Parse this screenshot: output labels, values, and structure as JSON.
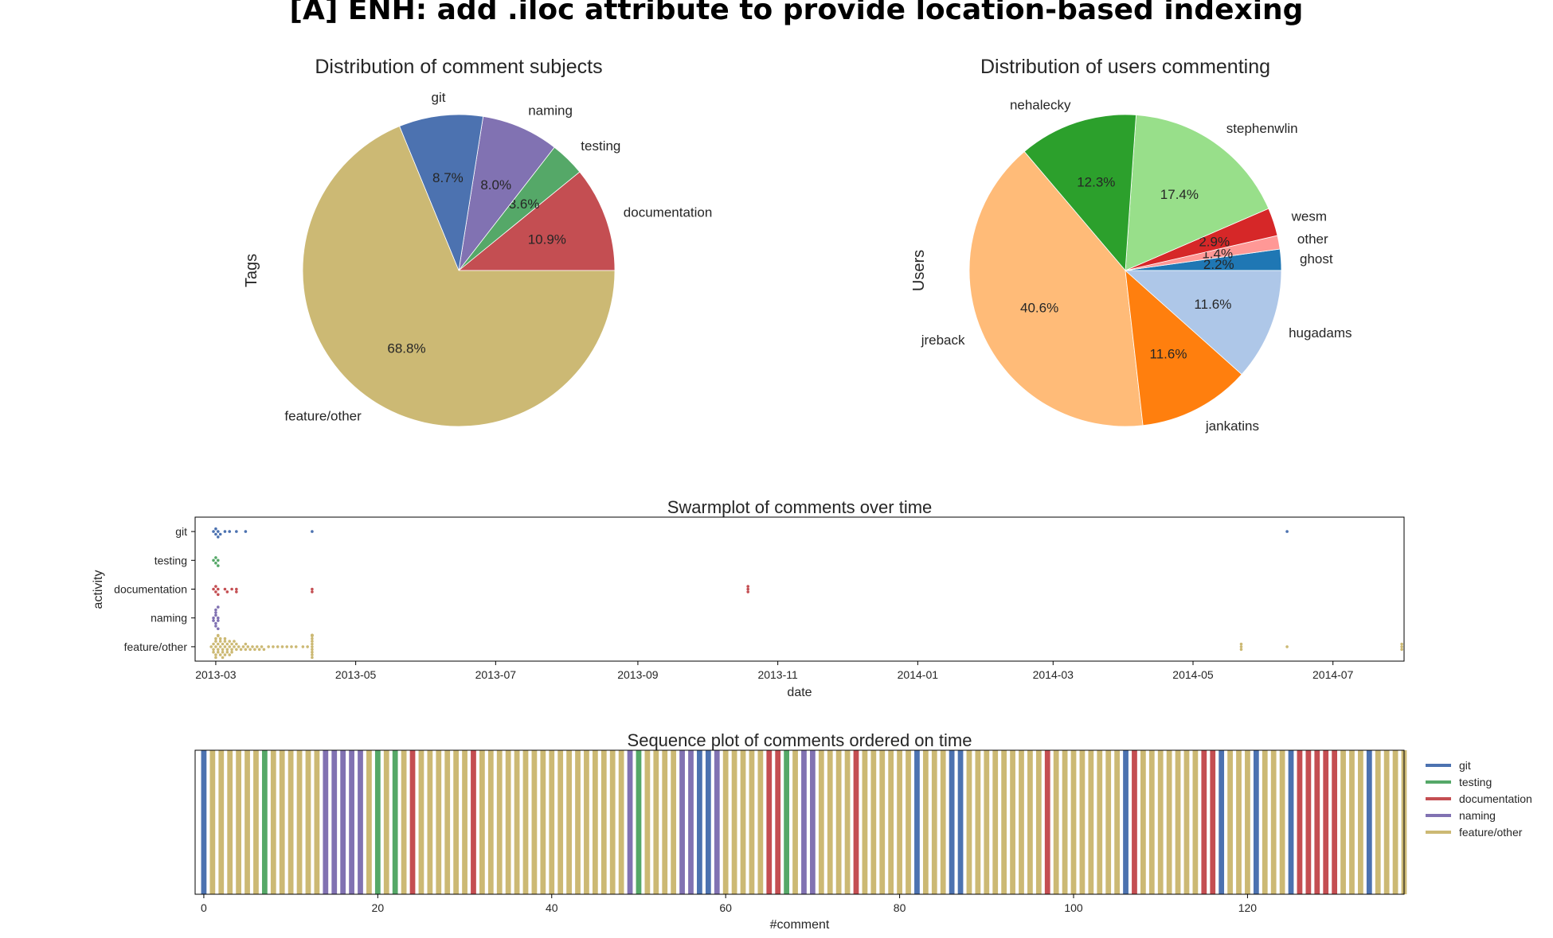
{
  "suptitle": "[A] ENH: add .iloc attribute to provide location-based indexing",
  "chart_data": [
    {
      "type": "pie",
      "title": "Distribution of comment subjects",
      "ylabel": "Tags",
      "slices": [
        {
          "label": "documentation",
          "value": 10.9,
          "pct": "10.9%",
          "color": "#c44e52"
        },
        {
          "label": "testing",
          "value": 3.6,
          "pct": "3.6%",
          "color": "#55a868"
        },
        {
          "label": "naming",
          "value": 8.0,
          "pct": "8.0%",
          "color": "#8172b2"
        },
        {
          "label": "git",
          "value": 8.7,
          "pct": "8.7%",
          "color": "#4c72b0"
        },
        {
          "label": "feature/other",
          "value": 68.8,
          "pct": "68.8%",
          "color": "#ccb974"
        }
      ]
    },
    {
      "type": "pie",
      "title": "Distribution of users commenting",
      "ylabel": "Users",
      "slices": [
        {
          "label": "ghost",
          "value": 2.2,
          "pct": "2.2%",
          "color": "#1f77b4"
        },
        {
          "label": "other",
          "value": 1.4,
          "pct": "1.4%",
          "color": "#ff9896"
        },
        {
          "label": "wesm",
          "value": 2.9,
          "pct": "2.9%",
          "color": "#d62728"
        },
        {
          "label": "stephenwlin",
          "value": 17.4,
          "pct": "17.4%",
          "color": "#98df8a"
        },
        {
          "label": "nehalecky",
          "value": 12.3,
          "pct": "12.3%",
          "color": "#2ca02c"
        },
        {
          "label": "jreback",
          "value": 40.6,
          "pct": "40.6%",
          "color": "#ffbb78"
        },
        {
          "label": "jankatins",
          "value": 11.6,
          "pct": "11.6%",
          "color": "#ff7f0e"
        },
        {
          "label": "hugadams",
          "value": 11.6,
          "pct": "11.6%",
          "color": "#aec7e8"
        }
      ]
    },
    {
      "type": "scatter",
      "title": "Swarmplot of comments over time",
      "xlabel": "date",
      "ylabel": "activity",
      "categories": [
        "git",
        "testing",
        "documentation",
        "naming",
        "feature/other"
      ],
      "xlim": [
        "2013-02-20",
        "2014-08-01"
      ],
      "xticks": [
        "2013-03",
        "2013-05",
        "2013-07",
        "2013-09",
        "2013-11",
        "2014-01",
        "2014-03",
        "2014-05",
        "2014-07"
      ],
      "series": [
        {
          "category": "git",
          "color": "#4c72b0",
          "dates": [
            "2013-02-28",
            "2013-03-01",
            "2013-03-01",
            "2013-03-02",
            "2013-03-02",
            "2013-03-03",
            "2013-03-05",
            "2013-03-07",
            "2013-03-10",
            "2013-03-14",
            "2013-04-12",
            "2014-06-11"
          ]
        },
        {
          "category": "testing",
          "color": "#55a868",
          "dates": [
            "2013-02-28",
            "2013-03-01",
            "2013-03-01",
            "2013-03-02",
            "2013-03-02"
          ]
        },
        {
          "category": "documentation",
          "color": "#c44e52",
          "dates": [
            "2013-02-28",
            "2013-03-01",
            "2013-03-01",
            "2013-03-02",
            "2013-03-02",
            "2013-03-05",
            "2013-03-06",
            "2013-03-08",
            "2013-03-10",
            "2013-03-10",
            "2013-04-12",
            "2013-04-12",
            "2013-10-19",
            "2013-10-19",
            "2013-10-19"
          ]
        },
        {
          "category": "naming",
          "color": "#8172b2",
          "dates": [
            "2013-02-28",
            "2013-02-28",
            "2013-03-01",
            "2013-03-01",
            "2013-03-01",
            "2013-03-01",
            "2013-03-01",
            "2013-03-02",
            "2013-03-02",
            "2013-03-02",
            "2013-03-02"
          ]
        },
        {
          "category": "feature/other",
          "color": "#ccb974",
          "dates": [
            "2013-02-27",
            "2013-02-28",
            "2013-02-28",
            "2013-02-28",
            "2013-03-01",
            "2013-03-01",
            "2013-03-01",
            "2013-03-01",
            "2013-03-01",
            "2013-03-02",
            "2013-03-02",
            "2013-03-02",
            "2013-03-02",
            "2013-03-02",
            "2013-03-03",
            "2013-03-03",
            "2013-03-03",
            "2013-03-03",
            "2013-03-04",
            "2013-03-04",
            "2013-03-04",
            "2013-03-04",
            "2013-03-05",
            "2013-03-05",
            "2013-03-05",
            "2013-03-05",
            "2013-03-06",
            "2013-03-06",
            "2013-03-06",
            "2013-03-07",
            "2013-03-07",
            "2013-03-07",
            "2013-03-08",
            "2013-03-08",
            "2013-03-08",
            "2013-03-09",
            "2013-03-09",
            "2013-03-10",
            "2013-03-10",
            "2013-03-11",
            "2013-03-12",
            "2013-03-13",
            "2013-03-14",
            "2013-03-14",
            "2013-03-15",
            "2013-03-16",
            "2013-03-17",
            "2013-03-18",
            "2013-03-19",
            "2013-03-20",
            "2013-03-21",
            "2013-03-22",
            "2013-03-24",
            "2013-03-26",
            "2013-03-28",
            "2013-03-30",
            "2013-04-01",
            "2013-04-03",
            "2013-04-05",
            "2013-04-08",
            "2013-04-10",
            "2013-04-12",
            "2013-04-12",
            "2013-04-12",
            "2013-04-12",
            "2013-04-12",
            "2013-04-12",
            "2013-04-12",
            "2013-04-12",
            "2013-04-12",
            "2013-04-12",
            "2013-04-12",
            "2013-04-12",
            "2013-04-12",
            "2013-04-12",
            "2013-04-12",
            "2013-04-12",
            "2013-04-12",
            "2013-04-12",
            "2013-04-12",
            "2013-04-12",
            "2014-05-22",
            "2014-05-22",
            "2014-05-22",
            "2014-06-11",
            "2014-07-31",
            "2014-07-31",
            "2014-07-31"
          ]
        }
      ]
    },
    {
      "type": "bar",
      "title": "Sequence plot of comments ordered on time",
      "xlabel": "#comment",
      "xlim": [
        -1,
        138
      ],
      "xticks": [
        0,
        20,
        40,
        60,
        80,
        100,
        120
      ],
      "legend": {
        "position": "right",
        "entries": [
          {
            "label": "git",
            "color": "#4c72b0"
          },
          {
            "label": "testing",
            "color": "#55a868"
          },
          {
            "label": "documentation",
            "color": "#c44e52"
          },
          {
            "label": "naming",
            "color": "#8172b2"
          },
          {
            "label": "feature/other",
            "color": "#ccb974"
          }
        ]
      },
      "sequence": [
        "git",
        "feature/other",
        "feature/other",
        "feature/other",
        "feature/other",
        "feature/other",
        "feature/other",
        "testing",
        "feature/other",
        "feature/other",
        "feature/other",
        "feature/other",
        "feature/other",
        "feature/other",
        "naming",
        "naming",
        "naming",
        "naming",
        "naming",
        "feature/other",
        "testing",
        "feature/other",
        "testing",
        "feature/other",
        "documentation",
        "feature/other",
        "feature/other",
        "feature/other",
        "feature/other",
        "feature/other",
        "feature/other",
        "documentation",
        "feature/other",
        "feature/other",
        "feature/other",
        "feature/other",
        "feature/other",
        "feature/other",
        "feature/other",
        "feature/other",
        "feature/other",
        "feature/other",
        "feature/other",
        "feature/other",
        "feature/other",
        "feature/other",
        "feature/other",
        "feature/other",
        "feature/other",
        "naming",
        "testing",
        "feature/other",
        "feature/other",
        "feature/other",
        "feature/other",
        "naming",
        "naming",
        "git",
        "git",
        "naming",
        "feature/other",
        "feature/other",
        "feature/other",
        "feature/other",
        "feature/other",
        "documentation",
        "documentation",
        "testing",
        "feature/other",
        "naming",
        "naming",
        "feature/other",
        "feature/other",
        "feature/other",
        "feature/other",
        "documentation",
        "feature/other",
        "feature/other",
        "feature/other",
        "feature/other",
        "feature/other",
        "feature/other",
        "git",
        "feature/other",
        "feature/other",
        "feature/other",
        "git",
        "git",
        "feature/other",
        "feature/other",
        "feature/other",
        "feature/other",
        "feature/other",
        "feature/other",
        "feature/other",
        "feature/other",
        "feature/other",
        "documentation",
        "feature/other",
        "feature/other",
        "feature/other",
        "feature/other",
        "feature/other",
        "feature/other",
        "feature/other",
        "feature/other",
        "git",
        "documentation",
        "feature/other",
        "feature/other",
        "feature/other",
        "feature/other",
        "feature/other",
        "feature/other",
        "feature/other",
        "documentation",
        "documentation",
        "git",
        "feature/other",
        "feature/other",
        "feature/other",
        "git",
        "feature/other",
        "feature/other",
        "feature/other",
        "git",
        "documentation",
        "documentation",
        "documentation",
        "documentation",
        "documentation",
        "feature/other",
        "feature/other",
        "feature/other",
        "git",
        "feature/other",
        "feature/other",
        "feature/other",
        "feature/other"
      ]
    }
  ]
}
